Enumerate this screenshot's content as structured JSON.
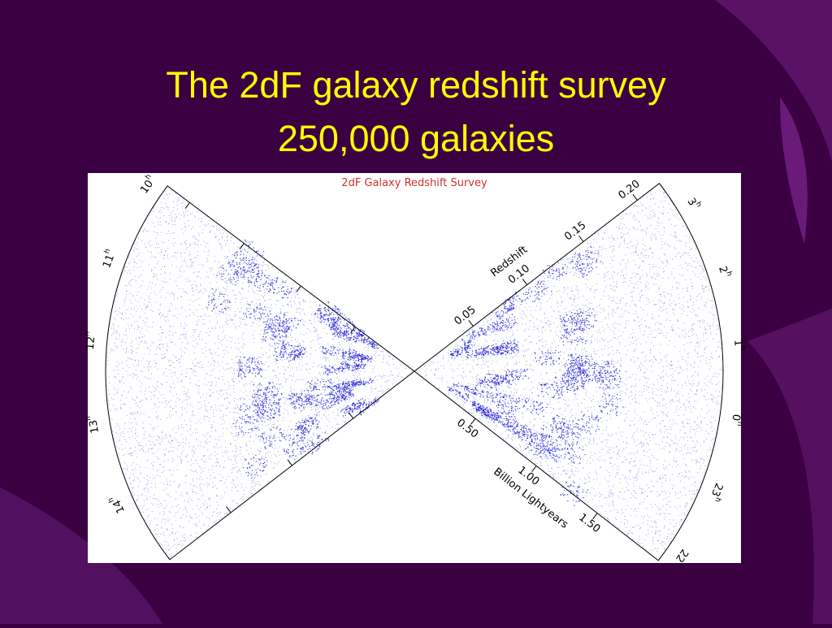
{
  "slide": {
    "title_lines": [
      "The 2dF galaxy redshift survey",
      "250,000 galaxies"
    ]
  },
  "figure": {
    "title": "2dF Galaxy Redshift Survey",
    "hour_suffix": "h",
    "left_hours": [
      "10",
      "11",
      "12",
      "13",
      "14"
    ],
    "right_hours": [
      "3",
      "2",
      "1",
      "0",
      "23",
      "22"
    ],
    "redshift_label": "Redshift",
    "redshift_ticks": [
      "0.05",
      "0.10",
      "0.15",
      "0.20"
    ],
    "distance_label": "Billion Lightyears",
    "distance_ticks": [
      "0.50",
      "1.00",
      "1.50"
    ]
  }
}
